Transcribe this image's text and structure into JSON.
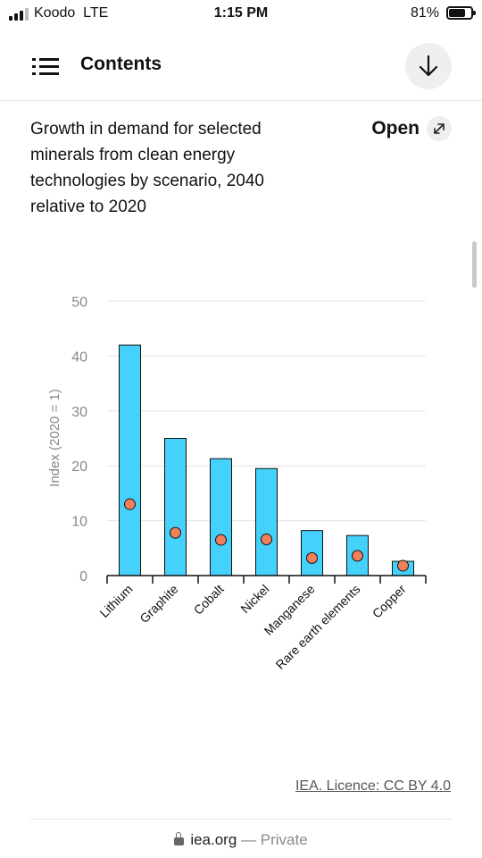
{
  "status_bar": {
    "carrier": "Koodo",
    "network": "LTE",
    "time": "1:15 PM",
    "battery_percent": "81%",
    "battery_level": 0.81
  },
  "header": {
    "title": "Contents",
    "menu_icon": "list-icon",
    "download_icon": "arrow-down-icon"
  },
  "chart_header": {
    "title": "Growth in demand for selected minerals from clean energy technologies by scenario, 2040 relative to 2020",
    "open_label": "Open",
    "open_icon": "expand-arrow-icon"
  },
  "chart_data": {
    "type": "bar",
    "categories": [
      "Lithium",
      "Graphite",
      "Cobalt",
      "Nickel",
      "Manganese",
      "Rare earth elements",
      "Copper"
    ],
    "series": [
      {
        "values": [
          42,
          25,
          21.3,
          19.5,
          8.2,
          7.3,
          2.6
        ],
        "color": "#44d1fb"
      },
      {
        "values": [
          13,
          7.8,
          6.5,
          6.6,
          3.2,
          3.6,
          1.8
        ],
        "color": "#f07f5c"
      }
    ],
    "ylabel": "Index (2020 = 1)",
    "ylim": [
      0,
      50
    ],
    "yticks": [
      0,
      10,
      20,
      30,
      40,
      50
    ],
    "grid": true
  },
  "footer": {
    "credit": "IEA. Licence: CC BY 4.0",
    "domain": "iea.org",
    "private_label": "— Private"
  }
}
